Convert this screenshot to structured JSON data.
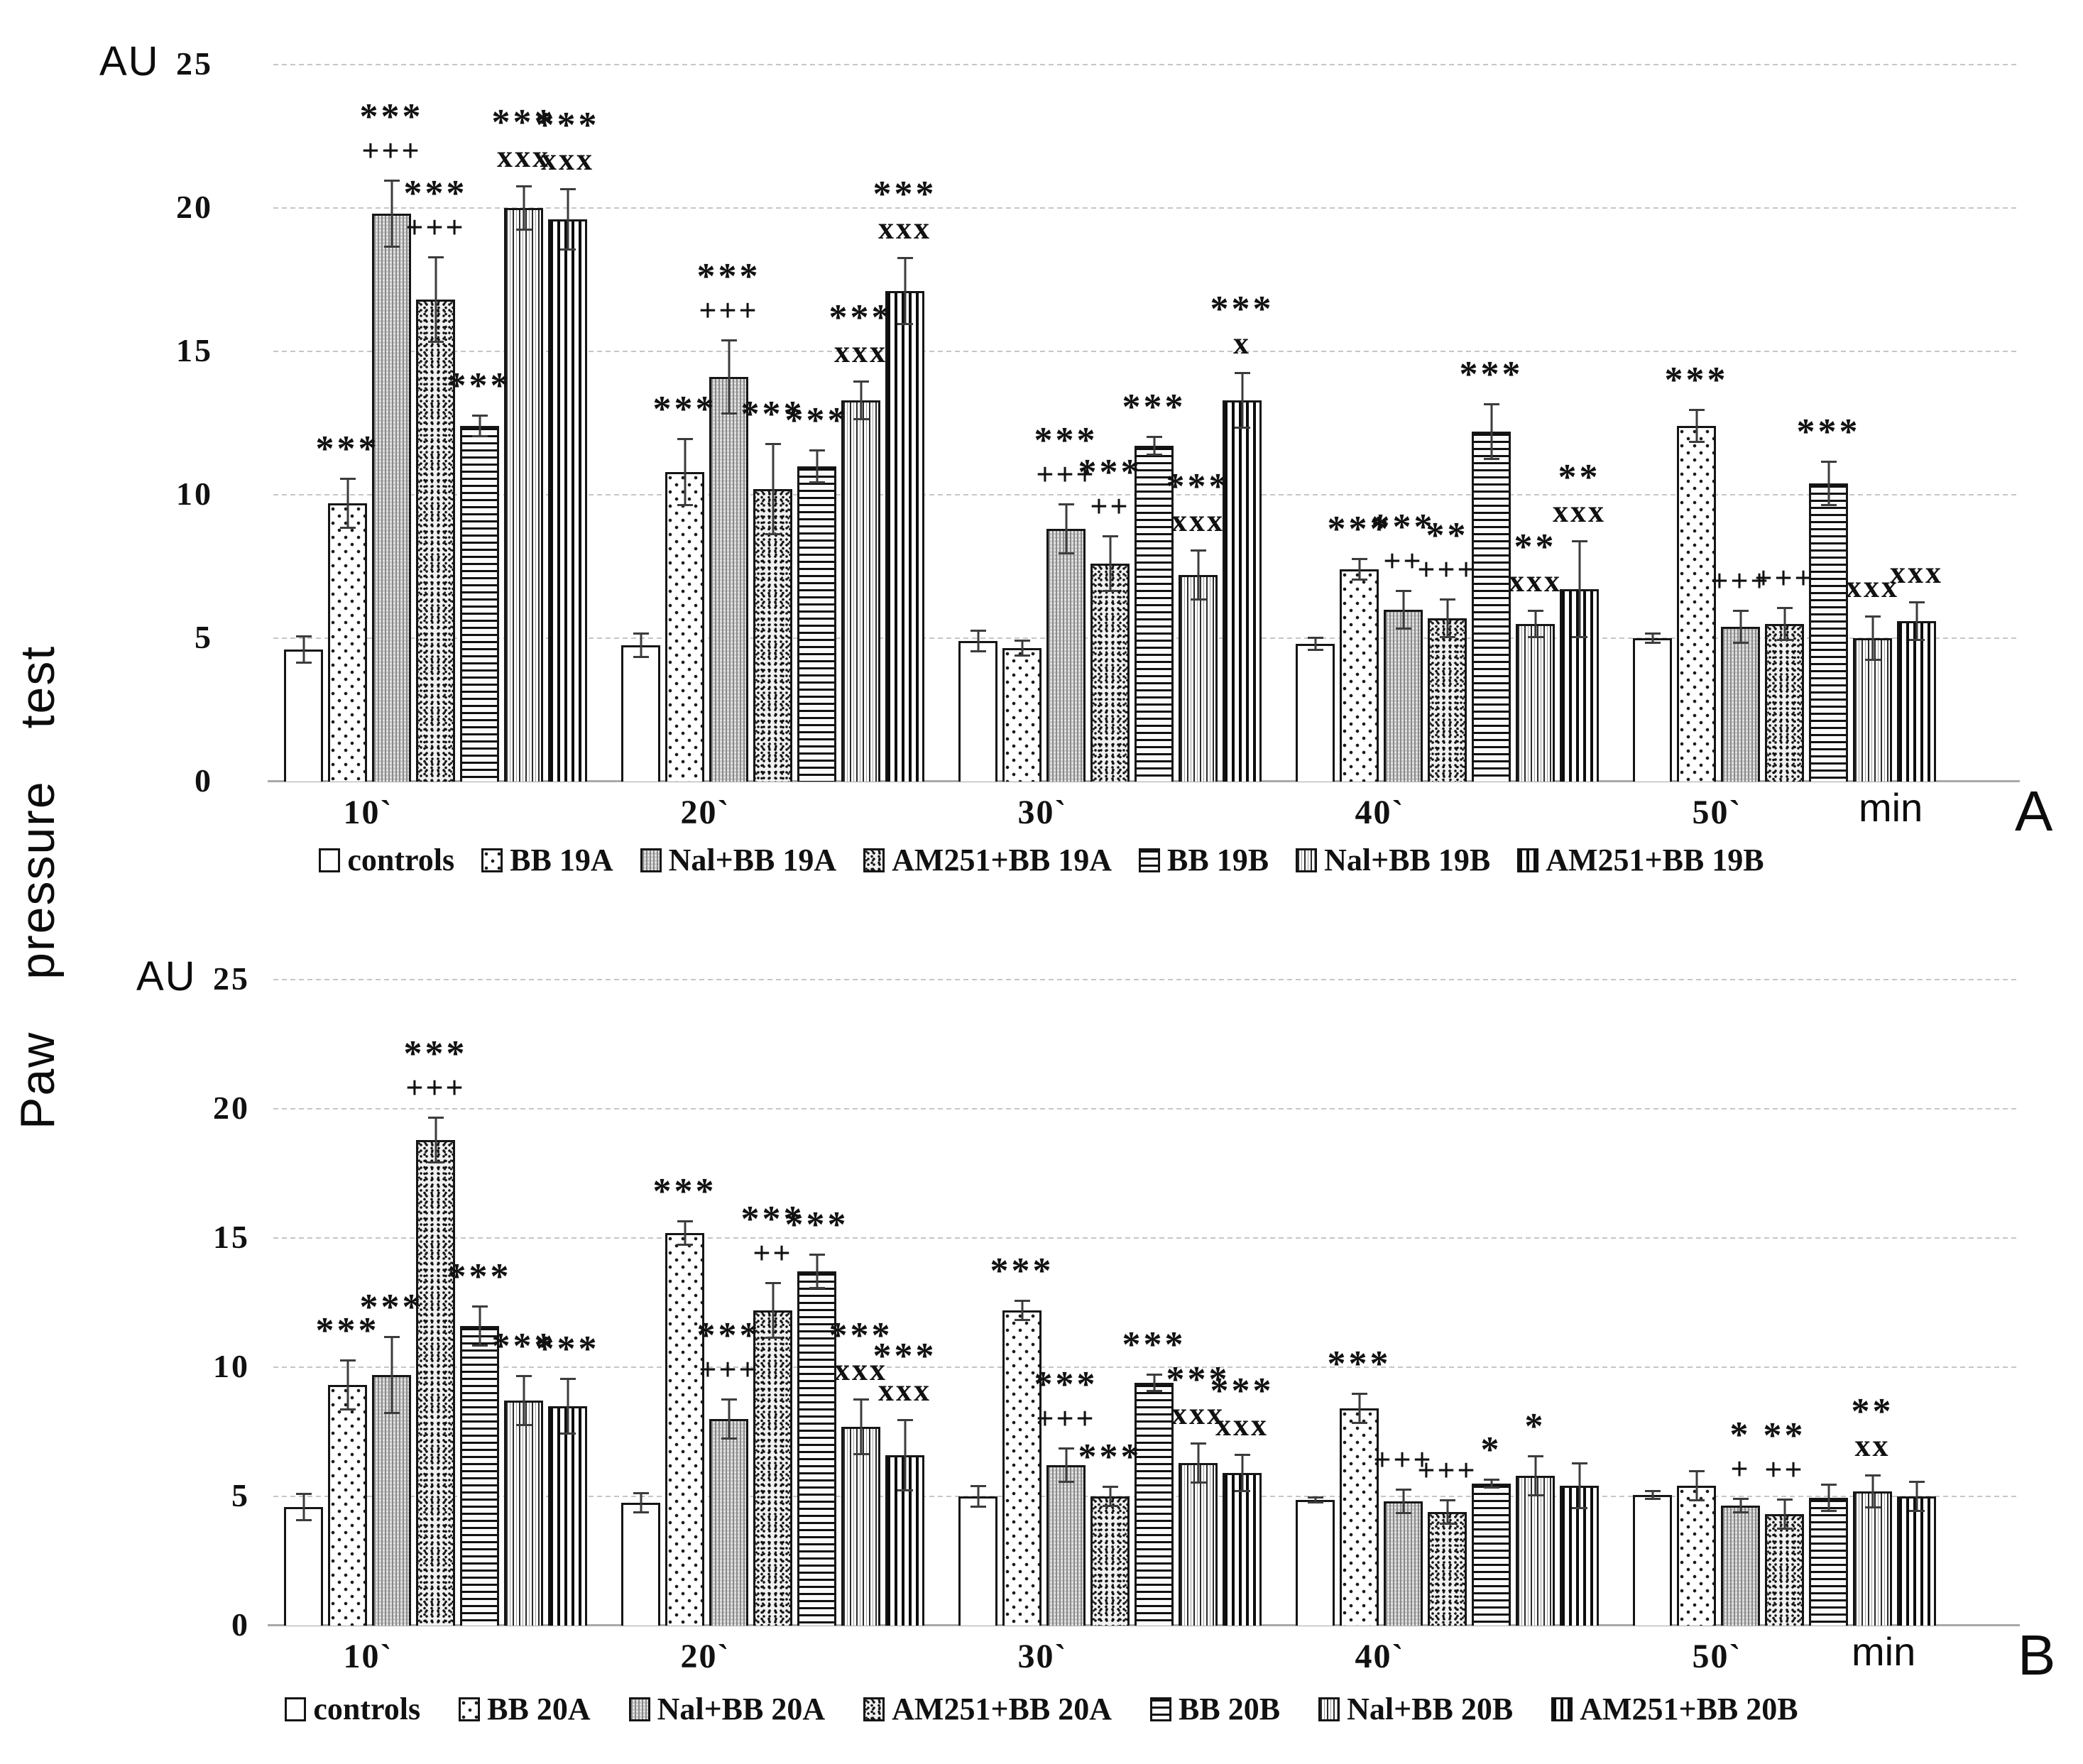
{
  "figure": {
    "y_axis_title": "Paw pressure test",
    "colors": {
      "bar_border": "#151515",
      "error_bar": "#3c3c3c",
      "gridline": "#c9c9c9",
      "text": "#111111",
      "background": "#ffffff"
    }
  },
  "chart_data": [
    {
      "type": "bar",
      "panel_label": "A",
      "y_unit": "AU",
      "x_unit": "min",
      "ylim": [
        0,
        25
      ],
      "yticks": [
        0,
        5,
        10,
        15,
        20,
        25
      ],
      "categories": [
        "10`",
        "20`",
        "30`",
        "40`",
        "50`"
      ],
      "grid": "horizontal",
      "legend_position": "bottom",
      "series": [
        {
          "name": "controls",
          "pattern": "plain",
          "values": [
            4.6,
            4.75,
            4.9,
            4.8,
            5.0
          ],
          "errors": [
            0.5,
            0.45,
            0.4,
            0.25,
            0.2
          ],
          "annotations": [
            [],
            [],
            [],
            [],
            []
          ]
        },
        {
          "name": "BB 19A",
          "pattern": "dots",
          "values": [
            9.7,
            10.8,
            4.65,
            7.4,
            12.4
          ],
          "errors": [
            0.9,
            1.2,
            0.3,
            0.4,
            0.6
          ],
          "annotations": [
            [
              "***"
            ],
            [
              "***"
            ],
            [],
            [
              "***"
            ],
            [
              "***"
            ]
          ]
        },
        {
          "name": "Nal+BB 19A",
          "pattern": "grayv",
          "values": [
            19.8,
            14.1,
            8.8,
            6.0,
            5.4
          ],
          "errors": [
            1.2,
            1.3,
            0.9,
            0.7,
            0.6
          ],
          "annotations": [
            [
              "***",
              "+++"
            ],
            [
              "***",
              "+++"
            ],
            [
              "***",
              "+++"
            ],
            [
              "***",
              "++"
            ],
            [
              "+++"
            ]
          ]
        },
        {
          "name": "AM251+BB 19A",
          "pattern": "speck",
          "values": [
            16.8,
            10.2,
            7.6,
            5.7,
            5.5
          ],
          "errors": [
            1.5,
            1.6,
            1.0,
            0.7,
            0.6
          ],
          "annotations": [
            [
              "***",
              "+++"
            ],
            [
              "***"
            ],
            [
              "***",
              "++"
            ],
            [
              "**",
              "+++"
            ],
            [
              "+++"
            ]
          ]
        },
        {
          "name": "BB 19B",
          "pattern": "hline",
          "values": [
            12.4,
            11.0,
            11.7,
            12.2,
            10.4
          ],
          "errors": [
            0.4,
            0.6,
            0.35,
            1.0,
            0.8
          ],
          "annotations": [
            [
              "***"
            ],
            [
              "***"
            ],
            [
              "***"
            ],
            [
              "***"
            ],
            [
              "***"
            ]
          ]
        },
        {
          "name": "Nal+BB 19B",
          "pattern": "vthin",
          "values": [
            20.0,
            13.3,
            7.2,
            5.5,
            5.0
          ],
          "errors": [
            0.8,
            0.7,
            0.9,
            0.5,
            0.8
          ],
          "annotations": [
            [
              "***",
              "xxx"
            ],
            [
              "***",
              "xxx"
            ],
            [
              "***",
              "xxx"
            ],
            [
              "**",
              "xxx"
            ],
            [
              "xxx"
            ]
          ]
        },
        {
          "name": "AM251+BB 19B",
          "pattern": "vthick",
          "values": [
            19.6,
            17.1,
            13.3,
            6.7,
            5.6
          ],
          "errors": [
            1.1,
            1.2,
            1.0,
            1.7,
            0.7
          ],
          "annotations": [
            [
              "***",
              "xxx"
            ],
            [
              "***",
              "xxx"
            ],
            [
              "***",
              "x"
            ],
            [
              "**",
              "xxx"
            ],
            [
              "xxx"
            ]
          ]
        }
      ]
    },
    {
      "type": "bar",
      "panel_label": "B",
      "y_unit": "AU",
      "x_unit": "min",
      "ylim": [
        0,
        25
      ],
      "yticks": [
        0,
        5,
        10,
        15,
        20,
        25
      ],
      "categories": [
        "10`",
        "20`",
        "30`",
        "40`",
        "50`"
      ],
      "grid": "horizontal",
      "legend_position": "bottom",
      "series": [
        {
          "name": "controls",
          "pattern": "plain",
          "values": [
            4.6,
            4.75,
            5.0,
            4.85,
            5.05
          ],
          "errors": [
            0.55,
            0.4,
            0.45,
            0.15,
            0.2
          ],
          "annotations": [
            [],
            [],
            [],
            [],
            []
          ]
        },
        {
          "name": "BB 20A",
          "pattern": "dots",
          "values": [
            9.3,
            15.2,
            12.2,
            8.4,
            5.4
          ],
          "errors": [
            1.0,
            0.5,
            0.4,
            0.6,
            0.6
          ],
          "annotations": [
            [
              "***"
            ],
            [
              "***"
            ],
            [
              "***"
            ],
            [
              "***"
            ],
            []
          ]
        },
        {
          "name": "Nal+BB 20A",
          "pattern": "grayv",
          "values": [
            9.7,
            8.0,
            6.2,
            4.8,
            4.65
          ],
          "errors": [
            1.5,
            0.8,
            0.7,
            0.5,
            0.3
          ],
          "annotations": [
            [
              "***"
            ],
            [
              "***",
              "+++"
            ],
            [
              "***",
              "+++"
            ],
            [
              "+++"
            ],
            [
              "*",
              "+"
            ]
          ]
        },
        {
          "name": "AM251+BB 20A",
          "pattern": "speck",
          "values": [
            18.8,
            12.2,
            5.0,
            4.4,
            4.3
          ],
          "errors": [
            0.9,
            1.1,
            0.4,
            0.5,
            0.6
          ],
          "annotations": [
            [
              "***",
              "+++"
            ],
            [
              "***",
              "++"
            ],
            [
              "***"
            ],
            [
              "+++"
            ],
            [
              "**",
              "++"
            ]
          ]
        },
        {
          "name": "BB 20B",
          "pattern": "hline",
          "values": [
            11.6,
            13.7,
            9.4,
            5.5,
            4.95
          ],
          "errors": [
            0.8,
            0.7,
            0.35,
            0.2,
            0.55
          ],
          "annotations": [
            [
              "***"
            ],
            [
              "***"
            ],
            [
              "***"
            ],
            [
              "*"
            ],
            []
          ]
        },
        {
          "name": "Nal+BB 20B",
          "pattern": "vthin",
          "values": [
            8.7,
            7.7,
            6.3,
            5.8,
            5.2
          ],
          "errors": [
            1.0,
            1.1,
            0.8,
            0.8,
            0.65
          ],
          "annotations": [
            [
              "***"
            ],
            [
              "***",
              "xxx"
            ],
            [
              "***",
              "xxx"
            ],
            [
              "*"
            ],
            [
              "**",
              "xx"
            ]
          ]
        },
        {
          "name": "AM251+BB 20B",
          "pattern": "vthick",
          "values": [
            8.5,
            6.6,
            5.9,
            5.4,
            5.0
          ],
          "errors": [
            1.1,
            1.4,
            0.75,
            0.9,
            0.6
          ],
          "annotations": [
            [
              "***"
            ],
            [
              "***",
              "xxx"
            ],
            [
              "***",
              "xxx"
            ],
            [],
            []
          ]
        }
      ]
    }
  ]
}
